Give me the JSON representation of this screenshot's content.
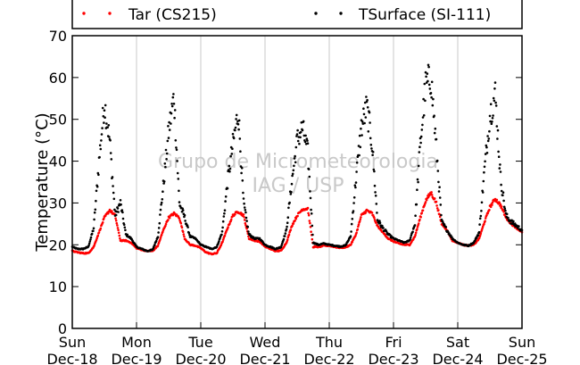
{
  "chart_data": {
    "type": "scatter",
    "title": "",
    "xlabel": "",
    "ylabel": "Temperature (°C)",
    "ylim": [
      0,
      70
    ],
    "yticks": [
      0,
      10,
      20,
      30,
      40,
      50,
      60,
      70
    ],
    "xlim": [
      "2015-12-18",
      "2015-12-25"
    ],
    "xticks": [
      {
        "day": "Sun",
        "date": "Dec-18"
      },
      {
        "day": "Mon",
        "date": "Dec-19"
      },
      {
        "day": "Tue",
        "date": "Dec-20"
      },
      {
        "day": "Wed",
        "date": "Dec-21"
      },
      {
        "day": "Thu",
        "date": "Dec-22"
      },
      {
        "day": "Fri",
        "date": "Dec-23"
      },
      {
        "day": "Sat",
        "date": "Dec-24"
      },
      {
        "day": "Sun",
        "date": "Dec-25"
      }
    ],
    "grid": "vertical at day boundaries",
    "legend_position": "top",
    "watermark": [
      "Grupo de Micrometeorologia",
      "IAG / USP"
    ],
    "series": [
      {
        "name": "Tar (CS215)",
        "color": "#ff0000",
        "x": [
          "2015-12-18 00:00",
          "2015-12-18 02:00",
          "2015-12-18 04:00",
          "2015-12-18 06:00",
          "2015-12-18 08:00",
          "2015-12-18 10:00",
          "2015-12-18 12:00",
          "2015-12-18 14:00",
          "2015-12-18 16:00",
          "2015-12-18 18:00",
          "2015-12-18 20:00",
          "2015-12-18 22:00",
          "2015-12-19 00:00",
          "2015-12-19 02:00",
          "2015-12-19 04:00",
          "2015-12-19 06:00",
          "2015-12-19 08:00",
          "2015-12-19 10:00",
          "2015-12-19 12:00",
          "2015-12-19 14:00",
          "2015-12-19 16:00",
          "2015-12-19 18:00",
          "2015-12-19 20:00",
          "2015-12-19 22:00",
          "2015-12-20 00:00",
          "2015-12-20 02:00",
          "2015-12-20 04:00",
          "2015-12-20 06:00",
          "2015-12-20 08:00",
          "2015-12-20 10:00",
          "2015-12-20 12:00",
          "2015-12-20 14:00",
          "2015-12-20 16:00",
          "2015-12-20 18:00",
          "2015-12-20 20:00",
          "2015-12-20 22:00",
          "2015-12-21 00:00",
          "2015-12-21 02:00",
          "2015-12-21 04:00",
          "2015-12-21 06:00",
          "2015-12-21 08:00",
          "2015-12-21 10:00",
          "2015-12-21 12:00",
          "2015-12-21 14:00",
          "2015-12-21 16:00",
          "2015-12-21 18:00",
          "2015-12-21 20:00",
          "2015-12-21 22:00",
          "2015-12-22 00:00",
          "2015-12-22 02:00",
          "2015-12-22 04:00",
          "2015-12-22 06:00",
          "2015-12-22 08:00",
          "2015-12-22 10:00",
          "2015-12-22 12:00",
          "2015-12-22 14:00",
          "2015-12-22 16:00",
          "2015-12-22 18:00",
          "2015-12-22 20:00",
          "2015-12-22 22:00",
          "2015-12-23 00:00",
          "2015-12-23 02:00",
          "2015-12-23 04:00",
          "2015-12-23 06:00",
          "2015-12-23 08:00",
          "2015-12-23 10:00",
          "2015-12-23 12:00",
          "2015-12-23 14:00",
          "2015-12-23 16:00",
          "2015-12-23 18:00",
          "2015-12-23 20:00",
          "2015-12-23 22:00",
          "2015-12-24 00:00",
          "2015-12-24 02:00",
          "2015-12-24 04:00",
          "2015-12-24 06:00",
          "2015-12-24 08:00",
          "2015-12-24 10:00",
          "2015-12-24 12:00",
          "2015-12-24 14:00",
          "2015-12-24 16:00",
          "2015-12-24 18:00",
          "2015-12-24 20:00",
          "2015-12-24 22:00",
          "2015-12-25 00:00"
        ],
        "y": [
          18.5,
          18.2,
          18.0,
          18.0,
          19.5,
          23.0,
          26.5,
          28.3,
          27.0,
          21.0,
          21.0,
          20.5,
          19.2,
          18.8,
          18.5,
          18.5,
          19.8,
          23.5,
          26.5,
          27.5,
          26.5,
          21.5,
          20.0,
          19.8,
          19.2,
          18.2,
          17.8,
          18.0,
          20.5,
          24.0,
          27.0,
          28.0,
          27.0,
          21.5,
          21.0,
          20.8,
          19.6,
          19.0,
          18.5,
          18.6,
          20.5,
          24.5,
          27.0,
          28.5,
          28.7,
          19.5,
          19.5,
          19.8,
          19.8,
          19.5,
          19.3,
          19.4,
          20.0,
          22.5,
          27.0,
          28.2,
          27.5,
          24.5,
          23.0,
          21.5,
          20.8,
          20.3,
          20.0,
          20.0,
          22.0,
          26.5,
          30.5,
          32.5,
          30.0,
          25.0,
          23.5,
          21.0,
          20.5,
          20.0,
          19.8,
          20.0,
          21.5,
          25.5,
          29.0,
          31.0,
          29.5,
          26.5,
          25.0,
          24.0,
          23.0
        ]
      },
      {
        "name": "TSurface (SI-111)",
        "color": "#000000",
        "x": [
          "2015-12-18 00:00",
          "2015-12-18 02:00",
          "2015-12-18 04:00",
          "2015-12-18 06:00",
          "2015-12-18 08:00",
          "2015-12-18 10:00",
          "2015-12-18 12:00",
          "2015-12-18 14:00",
          "2015-12-18 16:00",
          "2015-12-18 18:00",
          "2015-12-18 20:00",
          "2015-12-18 22:00",
          "2015-12-19 00:00",
          "2015-12-19 02:00",
          "2015-12-19 04:00",
          "2015-12-19 06:00",
          "2015-12-19 08:00",
          "2015-12-19 10:00",
          "2015-12-19 12:00",
          "2015-12-19 14:00",
          "2015-12-19 16:00",
          "2015-12-19 18:00",
          "2015-12-19 20:00",
          "2015-12-19 22:00",
          "2015-12-20 00:00",
          "2015-12-20 02:00",
          "2015-12-20 04:00",
          "2015-12-20 06:00",
          "2015-12-20 08:00",
          "2015-12-20 10:00",
          "2015-12-20 12:00",
          "2015-12-20 14:00",
          "2015-12-20 16:00",
          "2015-12-20 18:00",
          "2015-12-20 20:00",
          "2015-12-20 22:00",
          "2015-12-21 00:00",
          "2015-12-21 02:00",
          "2015-12-21 04:00",
          "2015-12-21 06:00",
          "2015-12-21 08:00",
          "2015-12-21 10:00",
          "2015-12-21 12:00",
          "2015-12-21 14:00",
          "2015-12-21 16:00",
          "2015-12-21 18:00",
          "2015-12-21 20:00",
          "2015-12-21 22:00",
          "2015-12-22 00:00",
          "2015-12-22 02:00",
          "2015-12-22 04:00",
          "2015-12-22 06:00",
          "2015-12-22 08:00",
          "2015-12-22 10:00",
          "2015-12-22 12:00",
          "2015-12-22 14:00",
          "2015-12-22 16:00",
          "2015-12-22 18:00",
          "2015-12-22 20:00",
          "2015-12-22 22:00",
          "2015-12-23 00:00",
          "2015-12-23 02:00",
          "2015-12-23 04:00",
          "2015-12-23 06:00",
          "2015-12-23 08:00",
          "2015-12-23 10:00",
          "2015-12-23 12:00",
          "2015-12-23 14:00",
          "2015-12-23 16:00",
          "2015-12-23 18:00",
          "2015-12-23 20:00",
          "2015-12-23 22:00",
          "2015-12-24 00:00",
          "2015-12-24 02:00",
          "2015-12-24 04:00",
          "2015-12-24 06:00",
          "2015-12-24 08:00",
          "2015-12-24 10:00",
          "2015-12-24 12:00",
          "2015-12-24 14:00",
          "2015-12-24 16:00",
          "2015-12-24 18:00",
          "2015-12-24 20:00",
          "2015-12-24 22:00",
          "2015-12-25 00:00"
        ],
        "y": [
          19.5,
          19.0,
          19.0,
          19.5,
          24.0,
          40.0,
          54.0,
          45.0,
          27.0,
          30.0,
          22.5,
          21.5,
          19.5,
          19.0,
          18.5,
          18.8,
          22.0,
          34.0,
          47.0,
          55.5,
          30.0,
          26.5,
          22.0,
          21.5,
          20.0,
          19.5,
          19.0,
          19.5,
          23.0,
          35.0,
          44.0,
          52.0,
          30.0,
          22.5,
          21.5,
          21.5,
          20.0,
          19.5,
          19.0,
          19.5,
          23.5,
          35.0,
          45.0,
          48.0,
          42.0,
          20.5,
          20.0,
          20.3,
          20.0,
          19.8,
          19.6,
          19.8,
          22.0,
          36.0,
          48.0,
          53.0,
          44.0,
          26.0,
          24.0,
          22.5,
          21.5,
          21.0,
          20.5,
          21.0,
          25.0,
          44.0,
          58.0,
          60.0,
          43.0,
          25.5,
          23.5,
          21.5,
          20.5,
          20.0,
          19.8,
          20.5,
          23.0,
          38.0,
          51.0,
          56.0,
          36.0,
          27.0,
          25.5,
          24.5,
          23.5
        ]
      }
    ]
  }
}
